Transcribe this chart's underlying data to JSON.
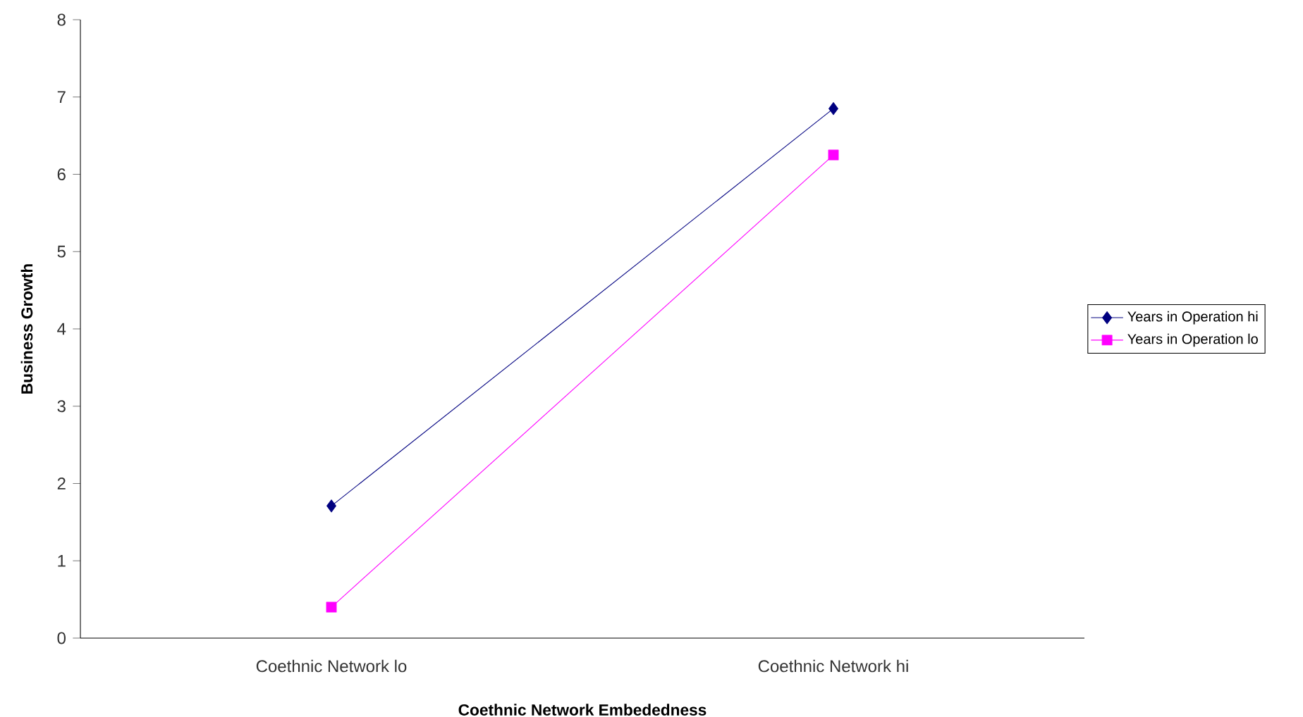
{
  "chart_data": {
    "type": "line",
    "xlabel": "Coethnic Network Embededness",
    "ylabel": "Business Growth",
    "categories": [
      "Coethnic Network lo",
      "Coethnic Network hi"
    ],
    "series": [
      {
        "name": "Years in Operation hi",
        "color": "#000080",
        "marker": "diamond",
        "values": [
          1.71,
          6.85
        ]
      },
      {
        "name": "Years in Operation lo",
        "color": "#ff00ff",
        "marker": "square",
        "values": [
          0.4,
          6.25
        ]
      }
    ],
    "ylim": [
      0,
      8
    ],
    "yticks": [
      0,
      1,
      2,
      3,
      4,
      5,
      6,
      7,
      8
    ],
    "grid": false,
    "legend": "right",
    "line_style": "solid"
  }
}
